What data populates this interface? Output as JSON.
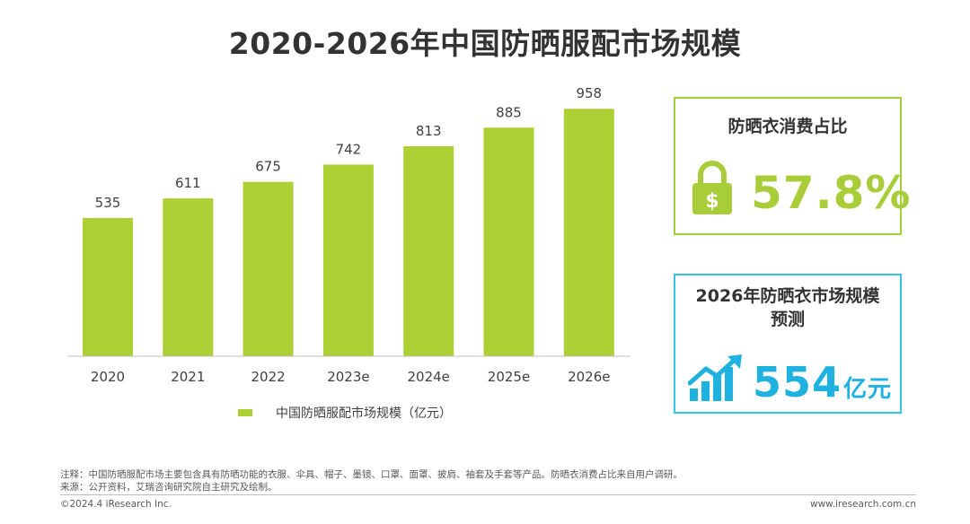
{
  "colors": {
    "bar": "#acd033",
    "card1_border": "#a5cf3a",
    "card2_border": "#31c5e8",
    "card1_accent": "#a9cd39",
    "card2_accent": "#1fb1e0",
    "axis": "#bfbfbf"
  },
  "chart_data": {
    "type": "bar",
    "title": "2020-2026年中国防晒服配市场规模",
    "categories": [
      "2020",
      "2021",
      "2022",
      "2023e",
      "2024e",
      "2025e",
      "2026e"
    ],
    "series": [
      {
        "name": "中国防晒服配市场规模（亿元）",
        "values": [
          535,
          611,
          675,
          742,
          813,
          885,
          958
        ]
      }
    ],
    "xlabel": "",
    "ylabel": "",
    "ylim": [
      0,
      1000
    ],
    "grid": false,
    "legend_position": "bottom"
  },
  "card_sun_clothing_share": {
    "title": "防晒衣消费占比",
    "value": "57.8%",
    "icon": "lock-dollar-icon"
  },
  "card_forecast": {
    "title_line1": "2026年防晒衣市场规模",
    "title_line2": "预测",
    "value": "554",
    "unit": "亿元",
    "icon": "growth-chart-icon"
  },
  "footer": {
    "note": "注释：中国防晒服配市场主要包含具有防晒功能的衣服、伞具、帽子、墨镜、口罩、面罩、披肩、袖套及手套等产品。防晒衣消费占比来自用户调研。",
    "source": "来源：公开资料，艾瑞咨询研究院自主研究及绘制。",
    "copyright": "©2024.4 iResearch Inc.",
    "url": "www.iresearch.com.cn"
  }
}
